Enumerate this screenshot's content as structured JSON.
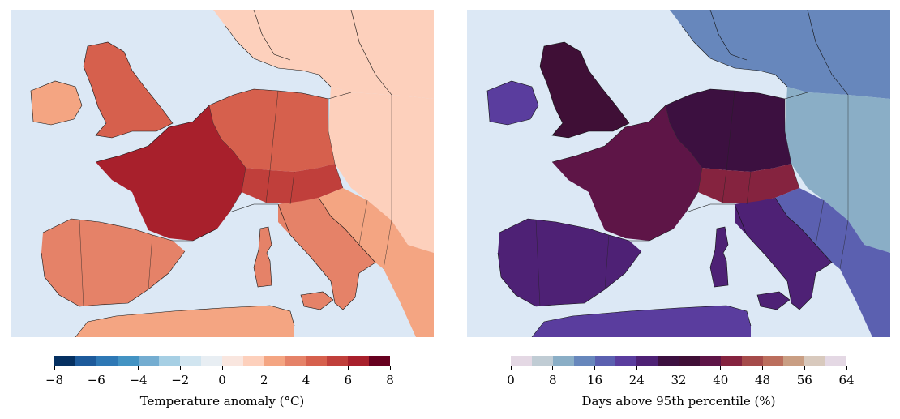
{
  "chart_data": [
    {
      "type": "heatmap",
      "colorbar": {
        "label": "Temperature anomaly (°C)",
        "ticks": [
          "−8",
          "−6",
          "−4",
          "−2",
          "0",
          "2",
          "4",
          "6",
          "8"
        ],
        "range": [
          -8,
          8
        ],
        "colors": [
          "#053061",
          "#1d5a9b",
          "#2e78b5",
          "#4393c3",
          "#74add1",
          "#a6cfe4",
          "#d1e5f0",
          "#e8eef3",
          "#f9e6df",
          "#fdd0bc",
          "#f4a582",
          "#e58268",
          "#d6604d",
          "#c03f3b",
          "#a8202c",
          "#67001f"
        ]
      },
      "regions": [
        {
          "name": "Iberian Peninsula",
          "value": 3
        },
        {
          "name": "France",
          "value": 6.5
        },
        {
          "name": "British Isles",
          "value": 4
        },
        {
          "name": "Ireland",
          "value": 2.5
        },
        {
          "name": "Benelux & Germany",
          "value": 4.5
        },
        {
          "name": "Alps & Switzerland",
          "value": 5.5
        },
        {
          "name": "Italy",
          "value": 3.5
        },
        {
          "name": "Scandinavia",
          "value": 1
        },
        {
          "name": "Eastern Europe",
          "value": 1.5
        },
        {
          "name": "Balkans",
          "value": 2
        },
        {
          "name": "North Africa",
          "value": 2
        }
      ]
    },
    {
      "type": "heatmap",
      "colorbar": {
        "label": "Days above 95th percentile (%)",
        "ticks": [
          "0",
          "8",
          "16",
          "24",
          "32",
          "40",
          "48",
          "56",
          "64"
        ],
        "range": [
          0,
          64
        ],
        "colors": [
          "#e4d8e4",
          "#c0ccd4",
          "#8aaec6",
          "#6787bc",
          "#5b60b0",
          "#5a3d9e",
          "#4e2175",
          "#3c1040",
          "#3f0f36",
          "#5e1547",
          "#85233f",
          "#a54b4a",
          "#bb6e5d",
          "#c99e83",
          "#d8c9bd",
          "#e4d8e4"
        ]
      },
      "regions": [
        {
          "name": "Iberian Peninsula",
          "value": 24
        },
        {
          "name": "France",
          "value": 38
        },
        {
          "name": "British Isles",
          "value": 34
        },
        {
          "name": "Ireland",
          "value": 22
        },
        {
          "name": "Benelux & Germany",
          "value": 30
        },
        {
          "name": "Alps & Switzerland",
          "value": 42
        },
        {
          "name": "Italy",
          "value": 26
        },
        {
          "name": "Scandinavia",
          "value": 14
        },
        {
          "name": "Eastern Europe",
          "value": 10
        },
        {
          "name": "Balkans",
          "value": 16
        },
        {
          "name": "North Africa",
          "value": 22
        }
      ]
    }
  ]
}
